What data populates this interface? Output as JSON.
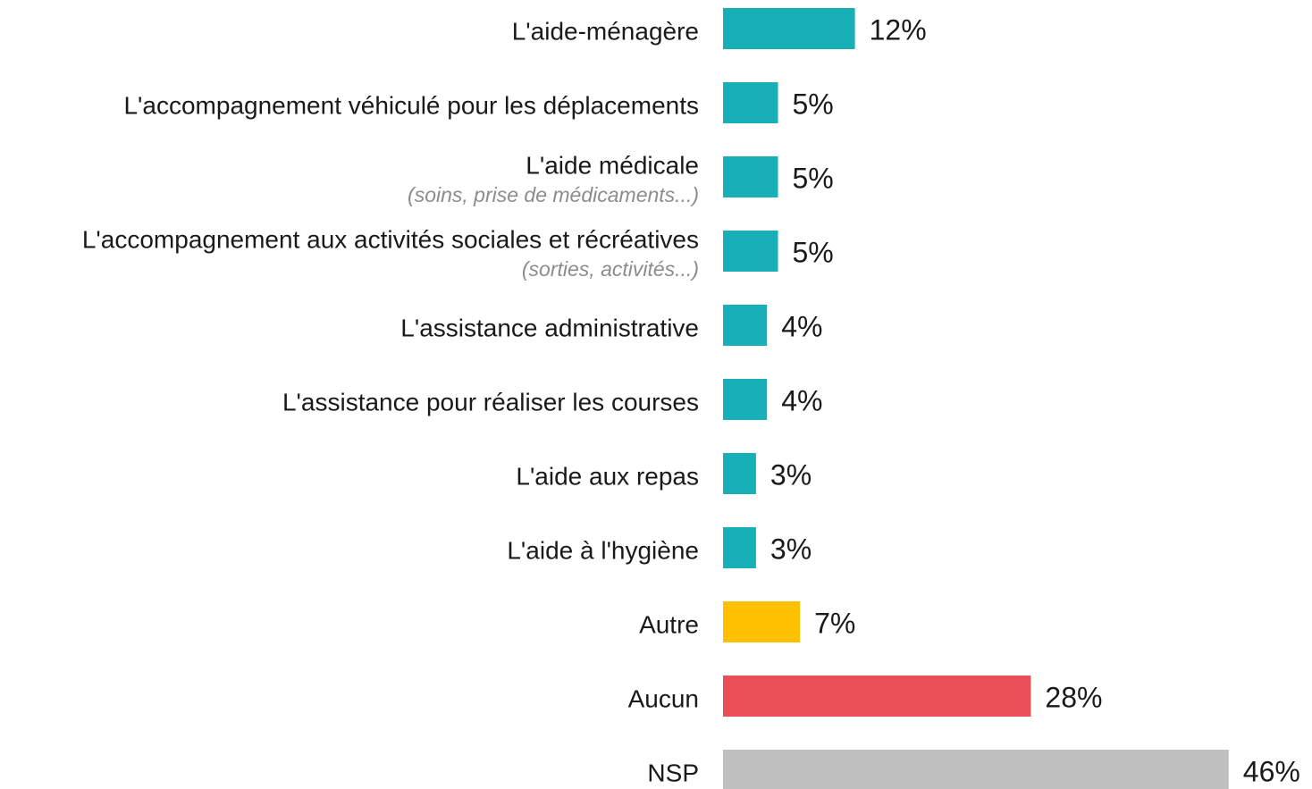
{
  "chart_data": {
    "type": "hbar",
    "categories": [
      "L'aide-ménagère",
      "L'accompagnement véhiculé pour les déplacements",
      "L'aide médicale",
      "L'accompagnement aux activités sociales et récréatives",
      "L'assistance administrative",
      "L'assistance pour réaliser les courses",
      "L'aide aux repas",
      "L'aide à l'hygiène",
      "Autre",
      "Aucun",
      "NSP"
    ],
    "subtitles": [
      null,
      null,
      "(soins, prise de médicaments...)",
      "(sorties, activités...)",
      null,
      null,
      null,
      null,
      null,
      null,
      null
    ],
    "values": [
      12,
      5,
      5,
      5,
      4,
      4,
      3,
      3,
      7,
      28,
      46
    ],
    "value_labels": [
      "12%",
      "5%",
      "5%",
      "5%",
      "4%",
      "4%",
      "3%",
      "3%",
      "7%",
      "28%",
      "46%"
    ],
    "colors": [
      "#17b0b8",
      "#17b0b8",
      "#17b0b8",
      "#17b0b8",
      "#17b0b8",
      "#17b0b8",
      "#17b0b8",
      "#17b0b8",
      "#ffc000",
      "#e84f56",
      "#bfbfbf"
    ]
  }
}
